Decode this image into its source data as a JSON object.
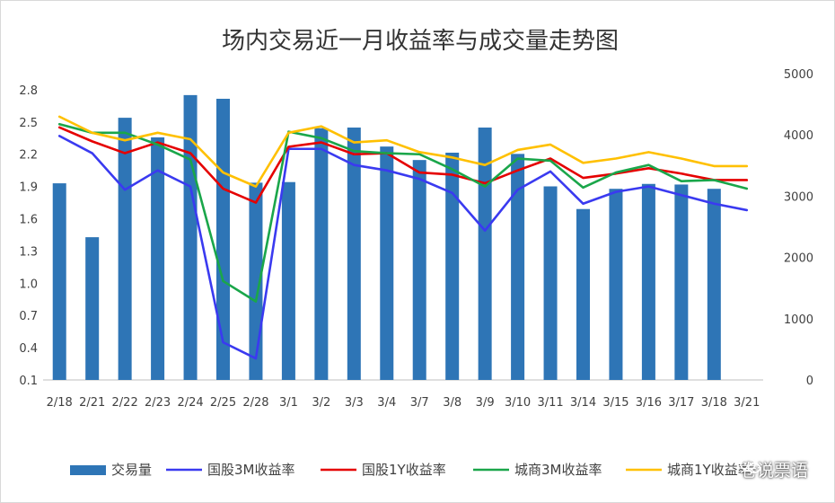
{
  "chart_data": {
    "type": "bar",
    "title": "场内交易近一月收益率与成交量走势图",
    "categories": [
      "2/18",
      "2/21",
      "2/22",
      "2/23",
      "2/24",
      "2/25",
      "2/28",
      "3/1",
      "3/2",
      "3/3",
      "3/4",
      "3/7",
      "3/8",
      "3/9",
      "3/10",
      "3/11",
      "3/14",
      "3/15",
      "3/16",
      "3/17",
      "3/18",
      "3/21"
    ],
    "y_left": {
      "ticks": [
        "0.1",
        "0.4",
        "0.7",
        "1.0",
        "1.3",
        "1.6",
        "1.9",
        "2.2",
        "2.5",
        "2.8"
      ],
      "ylim": [
        0.1,
        2.95
      ]
    },
    "y_right": {
      "ticks": [
        "0",
        "1000",
        "2000",
        "3000",
        "4000",
        "5000"
      ],
      "ylim": [
        0,
        5000
      ]
    },
    "series": [
      {
        "name": "交易量",
        "axis": "right",
        "kind": "bar",
        "color": "#2E75B6",
        "values": [
          3210,
          2330,
          4280,
          3960,
          4650,
          4590,
          3220,
          3230,
          4110,
          4120,
          3810,
          3590,
          3710,
          4120,
          3690,
          3160,
          2790,
          3120,
          3200,
          3190,
          3120,
          null
        ]
      },
      {
        "name": "国股3M收益率",
        "axis": "left",
        "kind": "line",
        "color": "#3A3AF0",
        "values": [
          2.37,
          2.21,
          1.87,
          2.05,
          1.9,
          0.45,
          0.3,
          2.25,
          2.25,
          2.1,
          2.05,
          1.97,
          1.84,
          1.49,
          1.87,
          2.04,
          1.74,
          1.85,
          1.9,
          1.82,
          1.74,
          1.68
        ]
      },
      {
        "name": "国股1Y收益率",
        "axis": "left",
        "kind": "line",
        "color": "#E50000",
        "values": [
          2.45,
          2.32,
          2.21,
          2.31,
          2.21,
          1.88,
          1.75,
          2.27,
          2.31,
          2.2,
          2.21,
          2.03,
          2.01,
          1.93,
          2.05,
          2.16,
          1.98,
          2.02,
          2.07,
          2.02,
          1.96,
          1.96
        ]
      },
      {
        "name": "城商3M收益率",
        "axis": "left",
        "kind": "line",
        "color": "#1AA64A",
        "values": [
          2.48,
          2.4,
          2.4,
          2.29,
          2.15,
          1.02,
          0.83,
          2.41,
          2.35,
          2.23,
          2.21,
          2.2,
          2.06,
          1.9,
          2.16,
          2.14,
          1.89,
          2.03,
          2.1,
          1.95,
          1.96,
          1.88
        ]
      },
      {
        "name": "城商1Y收益率",
        "axis": "left",
        "kind": "line",
        "color": "#FFC000",
        "values": [
          2.55,
          2.4,
          2.33,
          2.4,
          2.34,
          2.03,
          1.9,
          2.4,
          2.46,
          2.31,
          2.33,
          2.22,
          2.17,
          2.1,
          2.24,
          2.29,
          2.12,
          2.16,
          2.22,
          2.16,
          2.09,
          2.09
        ]
      }
    ],
    "legend": "bottom"
  },
  "watermark": {
    "text": "卷说票语",
    "icon": "wechat-icon"
  }
}
